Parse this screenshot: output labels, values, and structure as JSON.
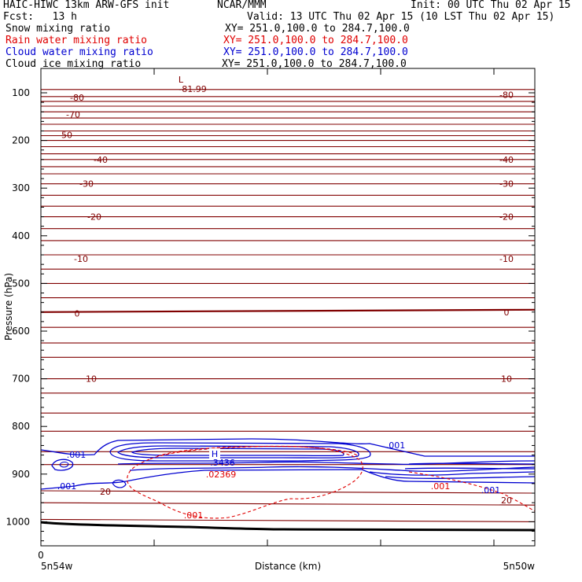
{
  "header": {
    "title": "HAIC-HIWC 13km ARW-GFS init",
    "center": "NCAR/MMM",
    "init": "Init: 00 UTC Thu 02 Apr 15",
    "fcst": "Fcst:   13 h",
    "valid": "Valid: 13 UTC Thu 02 Apr 15 (10 LST Thu 02 Apr 15)",
    "fields": [
      {
        "name": "Snow mixing ratio",
        "xy": "XY= 251.0,100.0 to 284.7,100.0",
        "color": "#000000"
      },
      {
        "name": "Rain water mixing ratio",
        "xy": "XY= 251.0,100.0 to 284.7,100.0",
        "color": "#e00000"
      },
      {
        "name": "Cloud water mixing ratio",
        "xy": "XY= 251.0,100.0 to 284.7,100.0",
        "color": "#0000d0"
      },
      {
        "name": "Cloud ice mixing ratio",
        "xy": "XY= 251.0,100.0 to 284.7,100.0",
        "color": "#000000"
      }
    ]
  },
  "chart_data": {
    "type": "line",
    "xlabel": "Distance (km)",
    "ylabel": "Pressure (hPa)",
    "ylim": [
      1050,
      50
    ],
    "yticks": [
      100,
      200,
      300,
      400,
      500,
      600,
      700,
      800,
      900,
      1000
    ],
    "xtick_labels": [
      "0"
    ],
    "x_end_labels": [
      "5n54w",
      "5n50w"
    ],
    "temperature_labels_left": [
      {
        "text": "-80",
        "p": 110
      },
      {
        "text": "-70",
        "p": 145
      },
      {
        "text": "-50",
        "p": 188
      },
      {
        "text": "-40",
        "p": 240
      },
      {
        "text": "-30",
        "p": 291
      },
      {
        "text": "-20",
        "p": 360
      },
      {
        "text": "-10",
        "p": 448
      },
      {
        "text": "0",
        "p": 563
      },
      {
        "text": "10",
        "p": 700
      },
      {
        "text": "20",
        "p": 937
      }
    ],
    "temperature_labels_right": [
      {
        "text": "-80",
        "p": 104
      },
      {
        "text": "-40",
        "p": 240
      },
      {
        "text": "-30",
        "p": 291
      },
      {
        "text": "-20",
        "p": 360
      },
      {
        "text": "-10",
        "p": 448
      },
      {
        "text": "0",
        "p": 560
      },
      {
        "text": "10",
        "p": 700
      },
      {
        "text": "20",
        "p": 955
      }
    ],
    "annotations": [
      {
        "text": "L",
        "color": "#800000"
      },
      {
        "text": "-81.99",
        "color": "#800000"
      },
      {
        "text": "H",
        "color": "#0000d0"
      },
      {
        "text": ".3436",
        "color": "#0000d0"
      },
      {
        "text": ".02369",
        "color": "#e00000"
      },
      {
        "text": ".001",
        "color": "#0000d0"
      },
      {
        "text": ".001",
        "color": "#0000d0"
      },
      {
        "text": ".001",
        "color": "#0000d0"
      },
      {
        "text": ".001",
        "color": "#0000d0"
      },
      {
        "text": ".001",
        "color": "#e00000"
      },
      {
        "text": ".001",
        "color": "#e00000"
      }
    ],
    "colors": {
      "temperature": "#800000",
      "rain": "#e00000",
      "cloud_water": "#0000d0",
      "terrain": "#000000"
    }
  }
}
